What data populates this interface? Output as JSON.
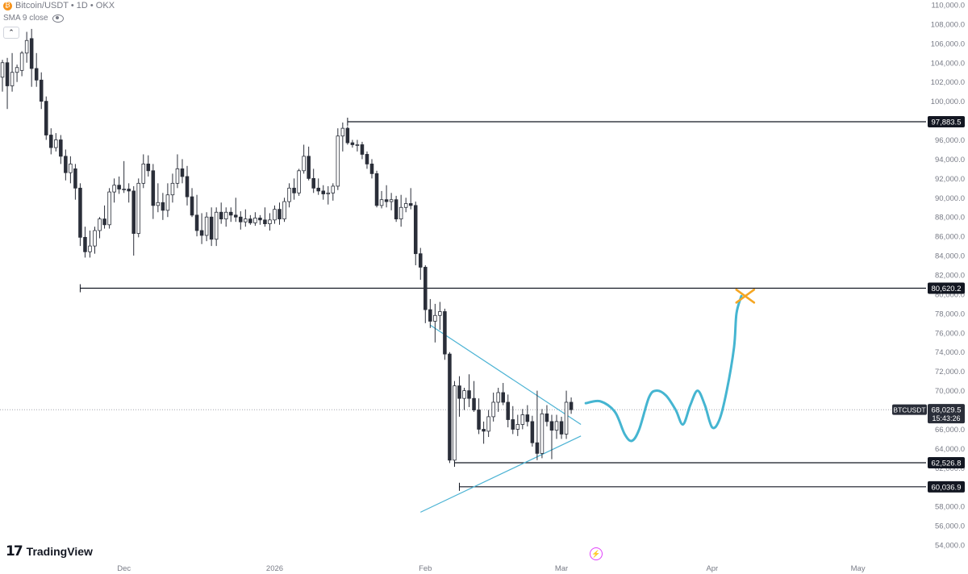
{
  "header": {
    "symbol": "Bitcoin/USDT • 1D • OKX",
    "indicator": "SMA 9 close",
    "collapse_icon": "chevron-up-icon",
    "visibility_icon": "eye-icon"
  },
  "branding": {
    "logo_text": "TradingView",
    "logo_mark": "17"
  },
  "colors": {
    "candle_up": "#ffffff",
    "candle_down": "#2a2e39",
    "candle_outline": "#2a2e39",
    "trendline": "#4cb3d4",
    "projection": "#45b5d1",
    "target_cross": "#f5a623",
    "level_line": "#131722"
  },
  "chart_data": {
    "type": "candlestick",
    "title": "",
    "ylim": [
      52500,
      110500
    ],
    "y_ticks": [
      54000,
      56000,
      58000,
      60000,
      62000,
      64000,
      66000,
      68000,
      70000,
      72000,
      74000,
      76000,
      78000,
      80000,
      82000,
      84000,
      86000,
      88000,
      90000,
      92000,
      94000,
      96000,
      98000,
      100000,
      102000,
      104000,
      106000,
      108000,
      110000
    ],
    "y_tick_labels": [
      "54,000.0",
      "56,000.0",
      "58,000.0",
      "60,000.0",
      "62,000.0",
      "64,000.0",
      "66,000.0",
      "68,000.0",
      "70,000.0",
      "72,000.0",
      "74,000.0",
      "76,000.0",
      "78,000.0",
      "80,000.0",
      "82,000.0",
      "84,000.0",
      "86,000.0",
      "88,000.0",
      "90,000.0",
      "92,000.0",
      "94,000.0",
      "96,000.0",
      "98,000.0",
      "100,000.0",
      "102,000.0",
      "104,000.0",
      "106,000.0",
      "108,000.0",
      "110,000.0"
    ],
    "x_labels": [
      {
        "label": "Dec",
        "day": 25
      },
      {
        "label": "2026",
        "day": 56
      },
      {
        "label": "Feb",
        "day": 87
      },
      {
        "label": "Mar",
        "day": 115
      },
      {
        "label": "Apr",
        "day": 146
      },
      {
        "label": "May",
        "day": 176
      }
    ],
    "x_range": [
      -0.5,
      190
    ],
    "candles": [
      {
        "o": 102500,
        "h": 104300,
        "l": 101000,
        "c": 104000
      },
      {
        "o": 104000,
        "h": 104500,
        "l": 99200,
        "c": 101600
      },
      {
        "o": 101600,
        "h": 105000,
        "l": 101000,
        "c": 103000
      },
      {
        "o": 103000,
        "h": 103800,
        "l": 102000,
        "c": 103500
      },
      {
        "o": 103200,
        "h": 105200,
        "l": 102600,
        "c": 105000
      },
      {
        "o": 105000,
        "h": 107200,
        "l": 104000,
        "c": 106300
      },
      {
        "o": 106500,
        "h": 107500,
        "l": 101500,
        "c": 103400
      },
      {
        "o": 103400,
        "h": 105000,
        "l": 101500,
        "c": 102200
      },
      {
        "o": 102200,
        "h": 103000,
        "l": 99200,
        "c": 100000
      },
      {
        "o": 100000,
        "h": 100500,
        "l": 96000,
        "c": 96500
      },
      {
        "o": 96500,
        "h": 97200,
        "l": 94500,
        "c": 95200
      },
      {
        "o": 95200,
        "h": 96700,
        "l": 94800,
        "c": 96000
      },
      {
        "o": 96000,
        "h": 96500,
        "l": 93500,
        "c": 94300
      },
      {
        "o": 94300,
        "h": 95000,
        "l": 91800,
        "c": 92600
      },
      {
        "o": 92600,
        "h": 94300,
        "l": 91500,
        "c": 93500
      },
      {
        "o": 93000,
        "h": 93500,
        "l": 89800,
        "c": 91000
      },
      {
        "o": 91000,
        "h": 91500,
        "l": 85000,
        "c": 85900
      },
      {
        "o": 85900,
        "h": 87000,
        "l": 83800,
        "c": 84400
      },
      {
        "o": 84400,
        "h": 86600,
        "l": 83800,
        "c": 85000
      },
      {
        "o": 85000,
        "h": 87000,
        "l": 84200,
        "c": 86600
      },
      {
        "o": 86600,
        "h": 88000,
        "l": 85800,
        "c": 87800
      },
      {
        "o": 87800,
        "h": 89200,
        "l": 86800,
        "c": 87200
      },
      {
        "o": 87200,
        "h": 91000,
        "l": 86800,
        "c": 90600
      },
      {
        "o": 90600,
        "h": 92000,
        "l": 89500,
        "c": 91300
      },
      {
        "o": 91300,
        "h": 92200,
        "l": 90400,
        "c": 90900
      },
      {
        "o": 90900,
        "h": 93800,
        "l": 90500,
        "c": 90900
      },
      {
        "o": 90900,
        "h": 91500,
        "l": 89500,
        "c": 90700
      },
      {
        "o": 90700,
        "h": 91200,
        "l": 84000,
        "c": 86300
      },
      {
        "o": 86300,
        "h": 92000,
        "l": 85900,
        "c": 91500
      },
      {
        "o": 91500,
        "h": 94500,
        "l": 91000,
        "c": 93500
      },
      {
        "o": 93500,
        "h": 94400,
        "l": 92200,
        "c": 92800
      },
      {
        "o": 92800,
        "h": 93500,
        "l": 87800,
        "c": 89200
      },
      {
        "o": 89200,
        "h": 91500,
        "l": 88500,
        "c": 89500
      },
      {
        "o": 89500,
        "h": 90500,
        "l": 87700,
        "c": 88700
      },
      {
        "o": 88700,
        "h": 91500,
        "l": 88000,
        "c": 90300
      },
      {
        "o": 90300,
        "h": 92500,
        "l": 89500,
        "c": 91500
      },
      {
        "o": 91500,
        "h": 94500,
        "l": 91000,
        "c": 93000
      },
      {
        "o": 93000,
        "h": 94000,
        "l": 91500,
        "c": 92200
      },
      {
        "o": 92200,
        "h": 93300,
        "l": 89200,
        "c": 90100
      },
      {
        "o": 90100,
        "h": 91000,
        "l": 88000,
        "c": 88200
      },
      {
        "o": 88200,
        "h": 90300,
        "l": 86000,
        "c": 86600
      },
      {
        "o": 86600,
        "h": 88400,
        "l": 85200,
        "c": 86100
      },
      {
        "o": 86100,
        "h": 88500,
        "l": 85500,
        "c": 88000
      },
      {
        "o": 88000,
        "h": 89000,
        "l": 85000,
        "c": 85700
      },
      {
        "o": 85700,
        "h": 89000,
        "l": 85000,
        "c": 88500
      },
      {
        "o": 88500,
        "h": 89500,
        "l": 87300,
        "c": 87800
      },
      {
        "o": 87800,
        "h": 89000,
        "l": 87000,
        "c": 88500
      },
      {
        "o": 88500,
        "h": 89000,
        "l": 87500,
        "c": 88200
      },
      {
        "o": 88200,
        "h": 90000,
        "l": 87500,
        "c": 88000
      },
      {
        "o": 88000,
        "h": 88600,
        "l": 86700,
        "c": 87500
      },
      {
        "o": 87500,
        "h": 88800,
        "l": 87000,
        "c": 87800
      },
      {
        "o": 87800,
        "h": 88200,
        "l": 87200,
        "c": 87400
      },
      {
        "o": 87400,
        "h": 88500,
        "l": 87100,
        "c": 87900
      },
      {
        "o": 87900,
        "h": 88200,
        "l": 87200,
        "c": 87700
      },
      {
        "o": 87700,
        "h": 89000,
        "l": 87000,
        "c": 87300
      },
      {
        "o": 87300,
        "h": 88400,
        "l": 86600,
        "c": 87700
      },
      {
        "o": 87700,
        "h": 89200,
        "l": 87300,
        "c": 88800
      },
      {
        "o": 88800,
        "h": 89500,
        "l": 87200,
        "c": 87800
      },
      {
        "o": 87800,
        "h": 90000,
        "l": 87500,
        "c": 89600
      },
      {
        "o": 89600,
        "h": 91500,
        "l": 89000,
        "c": 91000
      },
      {
        "o": 91000,
        "h": 92000,
        "l": 89800,
        "c": 90500
      },
      {
        "o": 90500,
        "h": 93000,
        "l": 90200,
        "c": 92800
      },
      {
        "o": 92800,
        "h": 95500,
        "l": 92500,
        "c": 94300
      },
      {
        "o": 94300,
        "h": 95300,
        "l": 91800,
        "c": 92000
      },
      {
        "o": 92000,
        "h": 93000,
        "l": 90500,
        "c": 91000
      },
      {
        "o": 91000,
        "h": 92000,
        "l": 90300,
        "c": 90700
      },
      {
        "o": 90700,
        "h": 91300,
        "l": 89800,
        "c": 90400
      },
      {
        "o": 90400,
        "h": 91200,
        "l": 89300,
        "c": 90500
      },
      {
        "o": 90500,
        "h": 91500,
        "l": 89700,
        "c": 91200
      },
      {
        "o": 91200,
        "h": 97200,
        "l": 90800,
        "c": 96400
      },
      {
        "o": 96400,
        "h": 97800,
        "l": 94800,
        "c": 97200
      },
      {
        "o": 97200,
        "h": 97400,
        "l": 95500,
        "c": 95700
      },
      {
        "o": 95700,
        "h": 96000,
        "l": 95200,
        "c": 95500
      },
      {
        "o": 95500,
        "h": 96000,
        "l": 94800,
        "c": 95500
      },
      {
        "o": 95500,
        "h": 95800,
        "l": 94000,
        "c": 94500
      },
      {
        "o": 94500,
        "h": 94800,
        "l": 93000,
        "c": 93500
      },
      {
        "o": 93500,
        "h": 94000,
        "l": 92000,
        "c": 92500
      },
      {
        "o": 92500,
        "h": 92800,
        "l": 89000,
        "c": 89200
      },
      {
        "o": 89200,
        "h": 90700,
        "l": 88900,
        "c": 89800
      },
      {
        "o": 89800,
        "h": 91300,
        "l": 89000,
        "c": 89600
      },
      {
        "o": 89600,
        "h": 90500,
        "l": 88700,
        "c": 89800
      },
      {
        "o": 89800,
        "h": 90200,
        "l": 87500,
        "c": 87800
      },
      {
        "o": 87800,
        "h": 90300,
        "l": 87000,
        "c": 89000
      },
      {
        "o": 89000,
        "h": 90000,
        "l": 88500,
        "c": 89400
      },
      {
        "o": 89400,
        "h": 91000,
        "l": 88800,
        "c": 89200
      },
      {
        "o": 89200,
        "h": 89600,
        "l": 83000,
        "c": 84200
      },
      {
        "o": 84200,
        "h": 84800,
        "l": 81500,
        "c": 82800
      },
      {
        "o": 82800,
        "h": 83000,
        "l": 77000,
        "c": 78400
      },
      {
        "o": 78400,
        "h": 79500,
        "l": 76500,
        "c": 77200
      },
      {
        "o": 77200,
        "h": 79000,
        "l": 75000,
        "c": 77800
      },
      {
        "o": 77800,
        "h": 79200,
        "l": 76300,
        "c": 78200
      },
      {
        "o": 78200,
        "h": 78500,
        "l": 73200,
        "c": 73800
      },
      {
        "o": 73800,
        "h": 74000,
        "l": 62500,
        "c": 62800
      },
      {
        "o": 62800,
        "h": 71000,
        "l": 62600,
        "c": 70500
      },
      {
        "o": 70500,
        "h": 71500,
        "l": 67300,
        "c": 69200
      },
      {
        "o": 69200,
        "h": 70300,
        "l": 68000,
        "c": 70000
      },
      {
        "o": 70000,
        "h": 71700,
        "l": 68300,
        "c": 69200
      },
      {
        "o": 69200,
        "h": 71000,
        "l": 67800,
        "c": 68000
      },
      {
        "o": 68000,
        "h": 69200,
        "l": 65500,
        "c": 66000
      },
      {
        "o": 66000,
        "h": 66800,
        "l": 64500,
        "c": 65800
      },
      {
        "o": 65800,
        "h": 68000,
        "l": 65200,
        "c": 67300
      },
      {
        "o": 67300,
        "h": 69800,
        "l": 66800,
        "c": 68800
      },
      {
        "o": 68800,
        "h": 70300,
        "l": 67800,
        "c": 69800
      },
      {
        "o": 69800,
        "h": 70800,
        "l": 68500,
        "c": 68800
      },
      {
        "o": 68800,
        "h": 69600,
        "l": 66200,
        "c": 67000
      },
      {
        "o": 67000,
        "h": 68400,
        "l": 65500,
        "c": 66000
      },
      {
        "o": 66000,
        "h": 67500,
        "l": 65300,
        "c": 66500
      },
      {
        "o": 66500,
        "h": 68100,
        "l": 66000,
        "c": 67500
      },
      {
        "o": 67500,
        "h": 68500,
        "l": 66300,
        "c": 66800
      },
      {
        "o": 66800,
        "h": 67400,
        "l": 64200,
        "c": 64600
      },
      {
        "o": 64600,
        "h": 70000,
        "l": 62800,
        "c": 63500
      },
      {
        "o": 63500,
        "h": 68100,
        "l": 63000,
        "c": 67600
      },
      {
        "o": 67600,
        "h": 68500,
        "l": 66300,
        "c": 66800
      },
      {
        "o": 66800,
        "h": 67500,
        "l": 62900,
        "c": 65900
      },
      {
        "o": 65900,
        "h": 67500,
        "l": 65000,
        "c": 66800
      },
      {
        "o": 66800,
        "h": 67300,
        "l": 65000,
        "c": 65500
      },
      {
        "o": 65500,
        "h": 70000,
        "l": 65000,
        "c": 68800
      },
      {
        "o": 68800,
        "h": 69300,
        "l": 67600,
        "c": 68030
      }
    ],
    "levels": [
      {
        "price": 97883.5,
        "label": "97,883.5",
        "from_day": 71
      },
      {
        "price": 80620.2,
        "label": "80,620.2",
        "from_day": 16
      },
      {
        "price": 62526.8,
        "label": "62,526.8",
        "from_day": 93
      },
      {
        "price": 60036.9,
        "label": "60,036.9",
        "from_day": 94
      }
    ],
    "last_price": {
      "price": 68029.5,
      "label": "68,029.5",
      "countdown": "15:43:26",
      "ticker": "BTCUSDT"
    },
    "trendlines": [
      {
        "x1": 88,
        "y1": 76800,
        "x2": 119,
        "y2": 66500
      },
      {
        "x1": 86,
        "y1": 57400,
        "x2": 119,
        "y2": 65300
      }
    ],
    "projection_path": [
      {
        "x": 120,
        "y": 68700
      },
      {
        "x": 123,
        "y": 68900
      },
      {
        "x": 126,
        "y": 67800
      },
      {
        "x": 128,
        "y": 65500
      },
      {
        "x": 129.5,
        "y": 64800
      },
      {
        "x": 131,
        "y": 66000
      },
      {
        "x": 133,
        "y": 69300
      },
      {
        "x": 134.5,
        "y": 70000
      },
      {
        "x": 136.5,
        "y": 69500
      },
      {
        "x": 138.5,
        "y": 68000
      },
      {
        "x": 140,
        "y": 66500
      },
      {
        "x": 141.5,
        "y": 68500
      },
      {
        "x": 143,
        "y": 70000
      },
      {
        "x": 144.5,
        "y": 68500
      },
      {
        "x": 146,
        "y": 66200
      },
      {
        "x": 147.5,
        "y": 67000
      },
      {
        "x": 149,
        "y": 70000
      },
      {
        "x": 150.5,
        "y": 74500
      },
      {
        "x": 151,
        "y": 78000
      },
      {
        "x": 152,
        "y": 79800
      }
    ],
    "target_marker": {
      "x": 152.8,
      "y": 79800
    }
  }
}
